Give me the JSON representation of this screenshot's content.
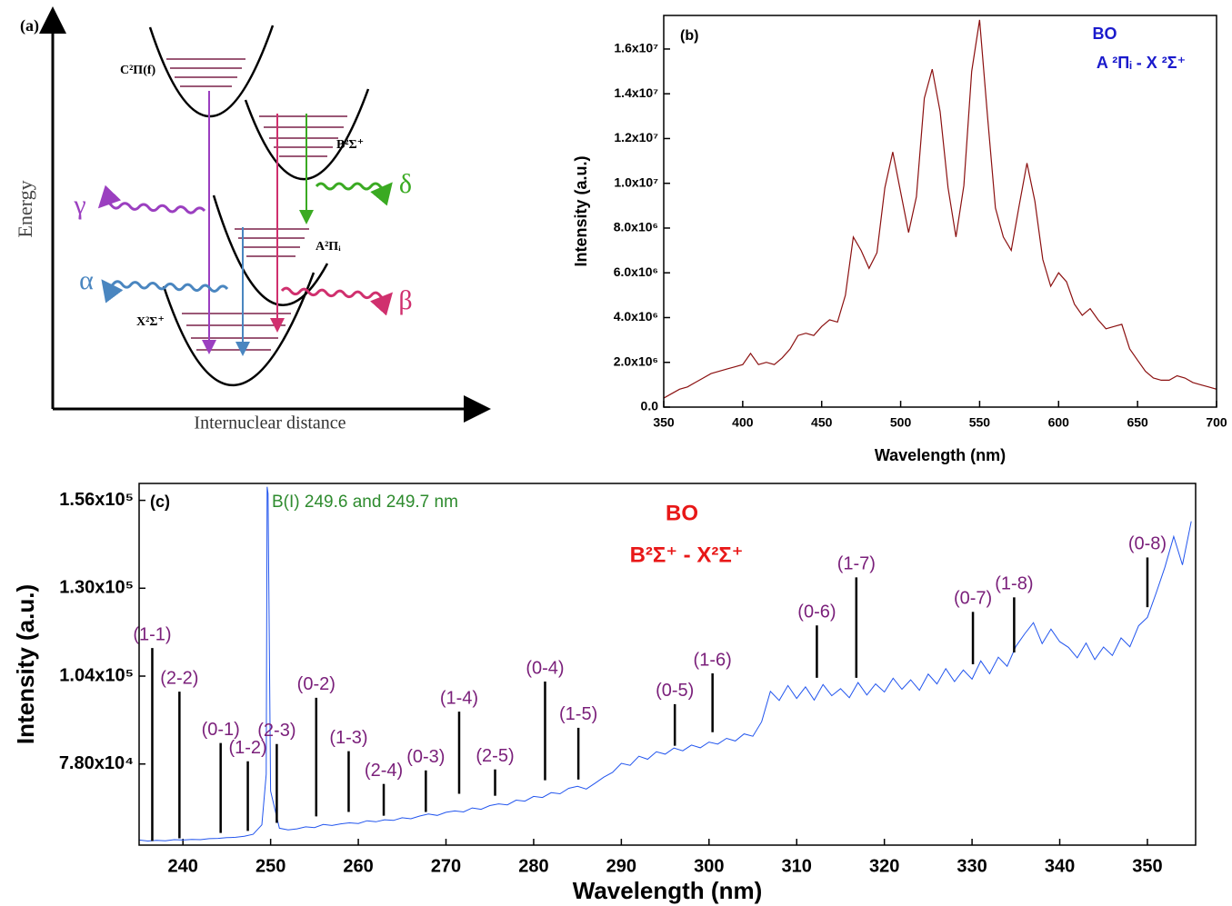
{
  "panel_a": {
    "label": "(a)",
    "y_label": "Energy",
    "x_label": "Internuclear distance",
    "states": [
      "C²Π(f)",
      "B²Σ⁺",
      "A²Πᵢ",
      "X²Σ⁺"
    ],
    "transitions": [
      "γ",
      "δ",
      "α",
      "β"
    ]
  },
  "chart_data": [
    {
      "type": "line",
      "panel_label": "(b)",
      "title": "BO",
      "subtitle": "A ²Πᵢ - X ²Σ⁺",
      "x_label": "Wavelength (nm)",
      "y_label": "Intensity (a.u.)",
      "color": "#8b1010",
      "x": [
        350,
        355,
        360,
        365,
        370,
        375,
        380,
        385,
        390,
        395,
        400,
        405,
        410,
        415,
        420,
        425,
        430,
        435,
        440,
        445,
        450,
        455,
        460,
        465,
        470,
        475,
        480,
        485,
        490,
        495,
        500,
        505,
        510,
        515,
        520,
        525,
        530,
        535,
        540,
        545,
        550,
        555,
        560,
        565,
        570,
        575,
        580,
        585,
        590,
        595,
        600,
        605,
        610,
        615,
        620,
        625,
        630,
        635,
        640,
        645,
        650,
        655,
        660,
        665,
        670,
        675,
        680,
        685,
        690,
        695,
        700
      ],
      "values": [
        400000,
        600000,
        800000,
        900000,
        1100000,
        1300000,
        1500000,
        1600000,
        1700000,
        1800000,
        1900000,
        2400000,
        1900000,
        2000000,
        1900000,
        2200000,
        2600000,
        3200000,
        3300000,
        3200000,
        3600000,
        3900000,
        3800000,
        5000000,
        7600000,
        7000000,
        6200000,
        6900000,
        9800000,
        11400000,
        9600000,
        7800000,
        9400000,
        13800000,
        15100000,
        13200000,
        9800000,
        7600000,
        9900000,
        15000000,
        17300000,
        13000000,
        8900000,
        7600000,
        7000000,
        9000000,
        10900000,
        9200000,
        6600000,
        5400000,
        6000000,
        5600000,
        4600000,
        4100000,
        4400000,
        3900000,
        3500000,
        3600000,
        3700000,
        2600000,
        2100000,
        1600000,
        1300000,
        1200000,
        1200000,
        1400000,
        1300000,
        1100000,
        1000000,
        900000,
        800000
      ],
      "xlim": [
        350,
        700
      ],
      "xticks": [
        350,
        400,
        450,
        500,
        550,
        600,
        650,
        700
      ],
      "ylim": [
        0,
        17500000
      ],
      "yticks": [
        {
          "value": 0,
          "label": "0.0"
        },
        {
          "value": 2000000,
          "label": "2.0x10⁶"
        },
        {
          "value": 4000000,
          "label": "4.0x10⁶"
        },
        {
          "value": 6000000,
          "label": "6.0x10⁶"
        },
        {
          "value": 8000000,
          "label": "8.0x10⁶"
        },
        {
          "value": 10000000,
          "label": "1.0x10⁷"
        },
        {
          "value": 12000000,
          "label": "1.2x10⁷"
        },
        {
          "value": 14000000,
          "label": "1.4x10⁷"
        },
        {
          "value": 16000000,
          "label": "1.6x10⁷"
        }
      ]
    },
    {
      "type": "line",
      "panel_label": "(c)",
      "title": "BO",
      "subtitle": "B²Σ⁺ - X²Σ⁺",
      "annotation": "B(I) 249.6 and 249.7 nm",
      "x_label": "Wavelength (nm)",
      "y_label": "Intensity (a.u.)",
      "color": "#2255ee",
      "x": [
        235,
        236,
        237,
        238,
        239,
        240,
        241,
        242,
        243,
        244,
        245,
        246,
        247,
        248,
        249,
        249.5,
        249.6,
        249.7,
        250,
        251,
        252,
        253,
        254,
        255,
        256,
        257,
        258,
        259,
        260,
        261,
        262,
        263,
        264,
        265,
        266,
        267,
        268,
        269,
        270,
        271,
        272,
        273,
        274,
        275,
        276,
        277,
        278,
        279,
        280,
        281,
        282,
        283,
        284,
        285,
        286,
        287,
        288,
        289,
        290,
        291,
        292,
        293,
        294,
        295,
        296,
        297,
        298,
        299,
        300,
        301,
        302,
        303,
        304,
        305,
        306,
        307,
        308,
        309,
        310,
        311,
        312,
        313,
        314,
        315,
        316,
        317,
        318,
        319,
        320,
        321,
        322,
        323,
        324,
        325,
        326,
        327,
        328,
        329,
        330,
        331,
        332,
        333,
        334,
        335,
        336,
        337,
        338,
        339,
        340,
        341,
        342,
        343,
        344,
        345,
        346,
        347,
        348,
        349,
        350,
        351,
        352,
        353,
        354,
        355
      ],
      "values": [
        55500,
        55200,
        55400,
        55300,
        55600,
        55500,
        55700,
        55600,
        55900,
        56000,
        56200,
        56300,
        56600,
        57200,
        60000,
        75000,
        160000,
        158000,
        70000,
        59000,
        58500,
        58800,
        59400,
        59200,
        60100,
        59800,
        60300,
        60600,
        60400,
        61200,
        60900,
        61500,
        61300,
        62100,
        61800,
        62600,
        63200,
        62800,
        63700,
        64100,
        63800,
        65000,
        64600,
        65700,
        66200,
        65900,
        67300,
        67000,
        68400,
        68100,
        69500,
        69200,
        70800,
        71400,
        70600,
        72300,
        74100,
        75500,
        78200,
        77600,
        80300,
        79400,
        81600,
        80900,
        82700,
        81900,
        83600,
        82800,
        84500,
        83900,
        85600,
        84800,
        86900,
        86200,
        90500,
        99500,
        96800,
        101200,
        97400,
        100800,
        96900,
        101500,
        98200,
        100300,
        97600,
        102100,
        98400,
        101700,
        99300,
        103400,
        100100,
        102900,
        99800,
        104600,
        101700,
        106200,
        102400,
        105800,
        103100,
        108500,
        104700,
        109600,
        106900,
        112800,
        116500,
        119800,
        113600,
        117900,
        114200,
        112500,
        109400,
        113800,
        108900,
        112600,
        110100,
        115300,
        112700,
        118900,
        121400,
        128600,
        136200,
        145300,
        136900,
        149800
      ],
      "bands": [
        {
          "label": "(1-1)",
          "x": 236.5,
          "range": [
            55200,
            112300
          ]
        },
        {
          "label": "(2-2)",
          "x": 239.6,
          "range": [
            56000,
            99400
          ]
        },
        {
          "label": "(0-1)",
          "x": 244.3,
          "range": [
            57600,
            84200
          ]
        },
        {
          "label": "(1-2)",
          "x": 247.4,
          "range": [
            58200,
            78800
          ]
        },
        {
          "label": "(2-3)",
          "x": 250.7,
          "range": [
            60600,
            83900
          ]
        },
        {
          "label": "(0-2)",
          "x": 255.2,
          "range": [
            62500,
            97600
          ]
        },
        {
          "label": "(1-3)",
          "x": 258.9,
          "range": [
            63800,
            81800
          ]
        },
        {
          "label": "(2-4)",
          "x": 262.9,
          "range": [
            62700,
            72100
          ]
        },
        {
          "label": "(0-3)",
          "x": 267.7,
          "range": [
            63800,
            76100
          ]
        },
        {
          "label": "(1-4)",
          "x": 271.5,
          "range": [
            69200,
            93500
          ]
        },
        {
          "label": "(2-5)",
          "x": 275.6,
          "range": [
            68600,
            76400
          ]
        },
        {
          "label": "(0-4)",
          "x": 281.3,
          "range": [
            73200,
            102400
          ]
        },
        {
          "label": "(1-5)",
          "x": 285.1,
          "range": [
            73400,
            88700
          ]
        },
        {
          "label": "(0-5)",
          "x": 296.1,
          "range": [
            83400,
            95700
          ]
        },
        {
          "label": "(1-6)",
          "x": 300.4,
          "range": [
            87400,
            104800
          ]
        },
        {
          "label": "(0-6)",
          "x": 312.3,
          "range": [
            103500,
            119000
          ]
        },
        {
          "label": "(1-7)",
          "x": 316.8,
          "range": [
            103500,
            133200
          ]
        },
        {
          "label": "(0-7)",
          "x": 330.1,
          "range": [
            107500,
            123000
          ]
        },
        {
          "label": "(1-8)",
          "x": 334.8,
          "range": [
            111000,
            127300
          ]
        },
        {
          "label": "(0-8)",
          "x": 350.0,
          "range": [
            124400,
            139100
          ]
        }
      ],
      "xlim": [
        235,
        355.5
      ],
      "xticks": [
        240,
        250,
        260,
        270,
        280,
        290,
        300,
        310,
        320,
        330,
        340,
        350
      ],
      "ylim": [
        54000,
        161000
      ],
      "yticks": [
        {
          "value": 78000,
          "label": "7.80x10⁴"
        },
        {
          "value": 104000,
          "label": "1.04x10⁵"
        },
        {
          "value": 130000,
          "label": "1.30x10⁵"
        },
        {
          "value": 156000,
          "label": "1.56x10⁵"
        }
      ]
    }
  ]
}
